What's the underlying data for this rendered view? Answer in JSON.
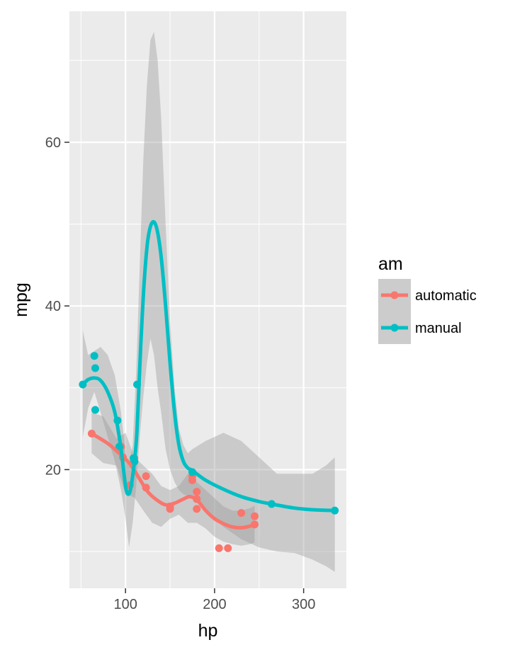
{
  "chart_data": {
    "type": "scatter",
    "xlabel": "hp",
    "ylabel": "mpg",
    "xlim": [
      37,
      348
    ],
    "ylim": [
      5.5,
      76
    ],
    "x_ticks": [
      100,
      200,
      300
    ],
    "x_tick_labels": [
      "100",
      "200",
      "300"
    ],
    "y_ticks": [
      20,
      40,
      60
    ],
    "y_tick_labels": [
      "20",
      "40",
      "60"
    ],
    "x_minor_ticks": [
      50,
      150,
      250
    ],
    "y_minor_ticks": [
      10,
      30,
      50,
      70
    ],
    "grid": true,
    "panel_background": "#ebebeb",
    "legend": {
      "title": "am",
      "position": "right",
      "entries": [
        "automatic",
        "manual"
      ]
    },
    "series": [
      {
        "name": "automatic",
        "color": "#f8766d",
        "points": [
          [
            110,
            21.4
          ],
          [
            175,
            18.7
          ],
          [
            105,
            18.1
          ],
          [
            245,
            14.3
          ],
          [
            62,
            24.4
          ],
          [
            95,
            22.8
          ],
          [
            123,
            19.2
          ],
          [
            123,
            17.8
          ],
          [
            180,
            16.4
          ],
          [
            180,
            17.3
          ],
          [
            180,
            15.2
          ],
          [
            205,
            10.4
          ],
          [
            215,
            10.4
          ],
          [
            230,
            14.7
          ],
          [
            97,
            21.5
          ],
          [
            150,
            15.5
          ],
          [
            150,
            15.2
          ],
          [
            245,
            13.3
          ],
          [
            175,
            19.2
          ]
        ],
        "smooth": [
          [
            62,
            24.4
          ],
          [
            80,
            23.2
          ],
          [
            95,
            21.8
          ],
          [
            105,
            20.7
          ],
          [
            115,
            19.0
          ],
          [
            125,
            17.3
          ],
          [
            135,
            16.3
          ],
          [
            145,
            15.7
          ],
          [
            155,
            15.9
          ],
          [
            165,
            16.4
          ],
          [
            172,
            16.7
          ],
          [
            180,
            16.3
          ],
          [
            190,
            15.0
          ],
          [
            200,
            14.0
          ],
          [
            210,
            13.4
          ],
          [
            220,
            13.0
          ],
          [
            230,
            12.9
          ],
          [
            240,
            13.1
          ],
          [
            245,
            13.3
          ]
        ],
        "ribbon": {
          "x": [
            62,
            75,
            90,
            100,
            110,
            120,
            130,
            140,
            150,
            160,
            170,
            180,
            190,
            200,
            210,
            220,
            230,
            240,
            245
          ],
          "upper": [
            27.0,
            26.5,
            23.8,
            24.5,
            21.5,
            20.5,
            19.5,
            18.0,
            17.5,
            18.0,
            19.5,
            18.5,
            17.5,
            16.5,
            15.5,
            15.0,
            15.0,
            15.3,
            15.6
          ],
          "lower": [
            22.0,
            20.8,
            20.5,
            17.0,
            16.6,
            15.0,
            13.5,
            13.0,
            14.0,
            14.5,
            13.5,
            13.5,
            12.8,
            11.8,
            11.2,
            10.9,
            10.7,
            10.9,
            11.1
          ]
        }
      },
      {
        "name": "manual",
        "color": "#00bfc4",
        "points": [
          [
            110,
            21.0
          ],
          [
            110,
            21.0
          ],
          [
            93,
            22.8
          ],
          [
            66,
            32.4
          ],
          [
            52,
            30.4
          ],
          [
            65,
            33.9
          ],
          [
            66,
            27.3
          ],
          [
            91,
            26.0
          ],
          [
            113,
            30.4
          ],
          [
            264,
            15.8
          ],
          [
            175,
            19.7
          ],
          [
            335,
            15.0
          ],
          [
            109,
            21.4
          ]
        ],
        "smooth": [
          [
            52,
            30.4
          ],
          [
            58,
            31.0
          ],
          [
            65,
            31.2
          ],
          [
            72,
            30.9
          ],
          [
            80,
            29.5
          ],
          [
            88,
            27.0
          ],
          [
            95,
            22.5
          ],
          [
            100,
            18.0
          ],
          [
            103,
            17.0
          ],
          [
            106,
            17.8
          ],
          [
            110,
            21.0
          ],
          [
            113,
            25.0
          ],
          [
            117,
            35.0
          ],
          [
            121,
            43.0
          ],
          [
            125,
            48.0
          ],
          [
            130,
            50.2
          ],
          [
            135,
            49.5
          ],
          [
            140,
            46.0
          ],
          [
            145,
            40.0
          ],
          [
            150,
            33.0
          ],
          [
            155,
            27.0
          ],
          [
            160,
            23.0
          ],
          [
            165,
            21.0
          ],
          [
            170,
            20.2
          ],
          [
            175,
            19.9
          ],
          [
            190,
            18.7
          ],
          [
            210,
            17.6
          ],
          [
            230,
            16.7
          ],
          [
            250,
            16.1
          ],
          [
            264,
            15.8
          ],
          [
            290,
            15.3
          ],
          [
            310,
            15.1
          ],
          [
            335,
            15.0
          ]
        ],
        "ribbon": {
          "x": [
            52,
            58,
            65,
            72,
            80,
            88,
            95,
            100,
            104,
            108,
            112,
            116,
            120,
            124,
            128,
            132,
            136,
            140,
            145,
            150,
            155,
            160,
            165,
            170,
            175,
            190,
            210,
            230,
            250,
            270,
            290,
            310,
            325,
            335
          ],
          "upper": [
            37.0,
            34.0,
            34.5,
            35.0,
            34.0,
            31.5,
            27.0,
            22.0,
            20.5,
            23.0,
            32.0,
            45.0,
            58.0,
            67.0,
            72.5,
            73.5,
            70.0,
            63.0,
            50.0,
            38.0,
            30.0,
            25.0,
            23.0,
            22.0,
            22.5,
            23.5,
            24.5,
            23.5,
            21.5,
            19.5,
            19.5,
            19.5,
            20.5,
            21.5
          ],
          "lower": [
            24.0,
            27.5,
            29.5,
            27.0,
            24.0,
            21.0,
            17.5,
            14.0,
            10.5,
            13.5,
            18.0,
            24.0,
            29.0,
            33.0,
            36.0,
            34.0,
            30.0,
            27.0,
            22.5,
            20.0,
            18.5,
            17.5,
            17.0,
            16.8,
            16.8,
            15.0,
            13.0,
            11.5,
            10.5,
            10.0,
            9.8,
            9.0,
            8.2,
            7.5
          ]
        }
      }
    ]
  }
}
